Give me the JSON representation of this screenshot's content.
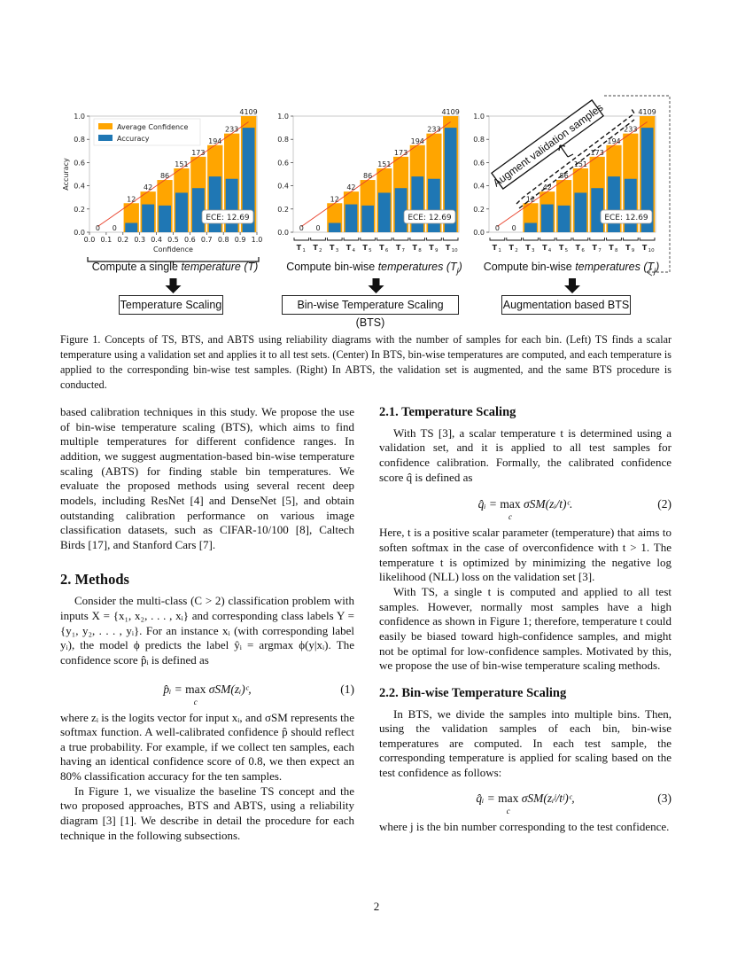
{
  "figure": {
    "legend": {
      "avg_conf": "Average Confidence",
      "accuracy": "Accuracy"
    },
    "colors": {
      "avg_conf": "#FFA500",
      "accuracy": "#1F77B4",
      "diagonal": "#E8402A"
    },
    "left": {
      "flow_text_a": "Compute a single ",
      "flow_text_i": "temperature (T)",
      "method_box": "Temperature Scaling"
    },
    "center": {
      "flow_text_a": "Compute bin-wise ",
      "flow_text_i": "temperatures (T",
      "flow_text_sub": "j",
      "flow_text_b": ")",
      "method_box": "Bin-wise Temperature Scaling (BTS)"
    },
    "right": {
      "flow_text_a": "Compute bin-wise ",
      "flow_text_i": "temperatures (T",
      "flow_text_sub": "j",
      "flow_text_b": ")",
      "method_box": "Augmentation based BTS",
      "augment_label": "Augment validation samples"
    }
  },
  "chart_data": [
    {
      "type": "bar",
      "panel": "left",
      "xlabel": "Confidence",
      "ylabel": "Accuracy",
      "xlim": [
        0,
        1
      ],
      "ylim": [
        0,
        1
      ],
      "xticks": [
        "0.0",
        "0.1",
        "0.2",
        "0.3",
        "0.4",
        "0.5",
        "0.6",
        "0.7",
        "0.8",
        "0.9",
        "1.0"
      ],
      "yticks": [
        "0.0",
        "0.2",
        "0.4",
        "0.6",
        "0.8",
        "1.0"
      ],
      "legend": "top-left",
      "bin_counts": [
        0,
        0,
        12,
        42,
        86,
        151,
        173,
        194,
        233,
        4109
      ],
      "series": [
        {
          "name": "Average Confidence",
          "values": [
            0,
            0,
            0.25,
            0.35,
            0.45,
            0.55,
            0.65,
            0.75,
            0.85,
            1.0
          ]
        },
        {
          "name": "Accuracy",
          "values": [
            0,
            0,
            0.08,
            0.24,
            0.23,
            0.34,
            0.38,
            0.48,
            0.46,
            0.9
          ]
        }
      ],
      "annotation": "ECE: 12.69"
    },
    {
      "type": "bar",
      "panel": "center",
      "ylim": [
        0,
        1
      ],
      "yticks": [
        "0.0",
        "0.2",
        "0.4",
        "0.6",
        "0.8",
        "1.0"
      ],
      "bin_labels": [
        "1",
        "2",
        "3",
        "4",
        "5",
        "6",
        "7",
        "8",
        "9",
        "10"
      ],
      "bin_label_prefix": "T",
      "bin_counts": [
        0,
        0,
        12,
        42,
        86,
        151,
        173,
        194,
        233,
        4109
      ],
      "series": [
        {
          "name": "Average Confidence",
          "values": [
            0,
            0,
            0.25,
            0.35,
            0.45,
            0.55,
            0.65,
            0.75,
            0.85,
            1.0
          ]
        },
        {
          "name": "Accuracy",
          "values": [
            0,
            0,
            0.08,
            0.24,
            0.23,
            0.34,
            0.38,
            0.48,
            0.46,
            0.9
          ]
        }
      ],
      "annotation": "ECE: 12.69"
    },
    {
      "type": "bar",
      "panel": "right",
      "ylim": [
        0,
        1
      ],
      "yticks": [
        "0.0",
        "0.2",
        "0.4",
        "0.6",
        "0.8",
        "1.0"
      ],
      "bin_labels": [
        "1",
        "2",
        "3",
        "4",
        "5",
        "6",
        "7",
        "8",
        "9",
        "10"
      ],
      "bin_label_prefix": "T",
      "bin_counts": [
        0,
        0,
        12,
        42,
        86,
        151,
        173,
        194,
        233,
        4109
      ],
      "series": [
        {
          "name": "Average Confidence",
          "values": [
            0,
            0,
            0.25,
            0.35,
            0.45,
            0.55,
            0.65,
            0.75,
            0.85,
            1.0
          ]
        },
        {
          "name": "Accuracy",
          "values": [
            0,
            0,
            0.08,
            0.24,
            0.23,
            0.34,
            0.38,
            0.48,
            0.46,
            0.9
          ]
        }
      ],
      "annotation": "ECE: 12.69"
    }
  ],
  "caption": "Figure 1. Concepts of TS, BTS, and ABTS using reliability diagrams with the number of samples for each bin. (Left) TS finds a scalar temperature using a validation set and applies it to all test sets. (Center) In BTS, bin-wise temperatures are computed, and each temperature is applied to the corresponding bin-wise test samples. (Right) In ABTS, the validation set is augmented, and the same BTS procedure is conducted.",
  "left_column": {
    "p1": "based calibration techniques in this study. We propose the use of bin-wise temperature scaling (BTS), which aims to find multiple temperatures for different confidence ranges. In addition, we suggest augmentation-based bin-wise temperature scaling (ABTS) for finding stable bin temperatures. We evaluate the proposed methods using several recent deep models, including ResNet [4] and DenseNet [5], and obtain outstanding calibration performance on various image classification datasets, such as CIFAR-10/100 [8], Caltech Birds [17], and Stanford Cars [7].",
    "heading": "2. Methods",
    "p2": "Consider the multi-class (C > 2) classification problem with inputs X = {x₁, x₂, . . . , xᵢ} and corresponding class labels Y = {y₁, y₂, . . . , yᵢ}. For an instance xᵢ (with corresponding label yᵢ), the model ϕ predicts the label ŷᵢ = argmax ϕ(y|xᵢ). The confidence score p̂ᵢ is defined as",
    "eq1": {
      "lhs": "p̂ᵢ = ",
      "op": "max",
      "op_sub": "c",
      "rhs": " σSM(zᵢ)ᶜ,",
      "num": "(1)"
    },
    "p3": "where zᵢ is the logits vector for input xᵢ, and σSM represents the softmax function. A well-calibrated confidence p̂ should reflect a true probability. For example, if we collect ten samples, each having an identical confidence score of 0.8, we then expect an 80% classification accuracy for the ten samples.",
    "p4": "In Figure 1, we visualize the baseline TS concept and the two proposed approaches, BTS and ABTS, using a reliability diagram [3] [1]. We describe in detail the procedure for each technique in the following subsections."
  },
  "right_column": {
    "heading1": "2.1. Temperature Scaling",
    "p1": "With TS [3], a scalar temperature t is determined using a validation set, and it is applied to all test samples for confidence calibration. Formally, the calibrated confidence score q̂ is defined as",
    "eq2": {
      "lhs": "q̂ᵢ = ",
      "op": "max",
      "op_sub": "c",
      "rhs": " σSM(zᵢ/t)ᶜ.",
      "num": "(2)"
    },
    "p2": "Here, t is a positive scalar parameter (temperature) that aims to soften softmax in the case of overconfidence with t > 1. The temperature t is optimized by minimizing the negative log likelihood (NLL) loss on the validation set [3].",
    "p3": "With TS, a single t is computed and applied to all test samples. However, normally most samples have a high confidence as shown in Figure 1; therefore, temperature t could easily be biased toward high-confidence samples, and might not be optimal for low-confidence samples. Motivated by this, we propose the use of bin-wise temperature scaling methods.",
    "heading2": "2.2. Bin-wise Temperature Scaling",
    "p4": "In BTS, we divide the samples into multiple bins. Then, using the validation samples of each bin, bin-wise temperatures are computed. In each test sample, the corresponding temperature is applied for scaling based on the test confidence as follows:",
    "eq3": {
      "lhs": "q̂ᵢ = ",
      "op": "max",
      "op_sub": "c",
      "rhs": " σSM(zᵢʲ/tʲ)ᶜ,",
      "num": "(3)"
    },
    "p5": "where j is the bin number corresponding to the test confidence."
  },
  "page_number": "2"
}
